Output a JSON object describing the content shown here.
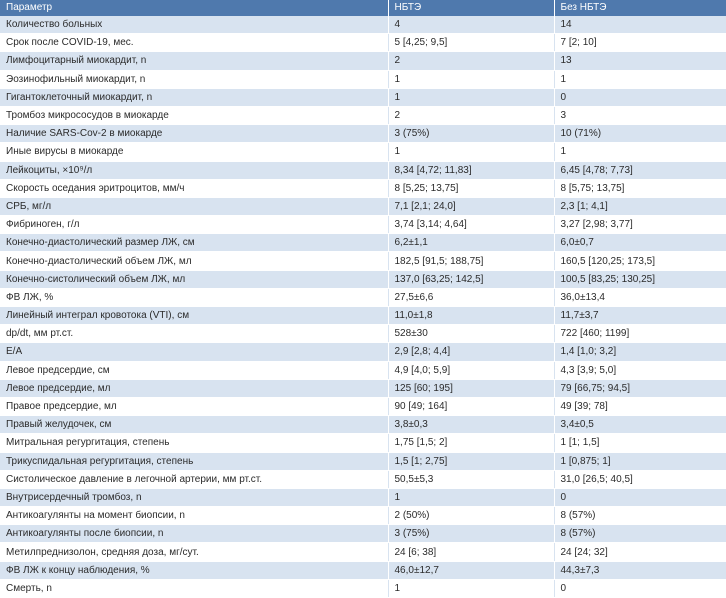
{
  "table": {
    "headers": [
      "Параметр",
      "НБТЭ",
      "Без НБТЭ"
    ],
    "rows": [
      [
        "Количество больных",
        "4",
        "14"
      ],
      [
        "Срок после COVID-19, мес.",
        "5 [4,25; 9,5]",
        "7 [2; 10]"
      ],
      [
        "Лимфоцитарный миокардит, n",
        "2",
        "13"
      ],
      [
        "Эозинофильный миокардит, n",
        "1",
        "1"
      ],
      [
        "Гигантоклеточный миокардит, n",
        "1",
        "0"
      ],
      [
        "Тромбоз микрососудов в миокарде",
        "2",
        "3"
      ],
      [
        "Наличие SARS-Cov-2 в миокарде",
        "3 (75%)",
        "10 (71%)"
      ],
      [
        "Иные вирусы в миокарде",
        "1",
        "1"
      ],
      [
        "Лейкоциты, ×10⁹/л",
        "8,34 [4,72; 11,83]",
        "6,45 [4,78; 7,73]"
      ],
      [
        "Скорость оседания эритроцитов, мм/ч",
        "8 [5,25; 13,75]",
        "8 [5,75; 13,75]"
      ],
      [
        "СРБ, мг/л",
        "7,1 [2,1; 24,0]",
        "2,3 [1; 4,1]"
      ],
      [
        "Фибриноген, г/л",
        "3,74 [3,14; 4,64]",
        "3,27 [2,98; 3,77]"
      ],
      [
        "Конечно-диастолический размер ЛЖ, см",
        "6,2±1,1",
        "6,0±0,7"
      ],
      [
        "Конечно-диастолический объем ЛЖ, мл",
        "182,5 [91,5; 188,75]",
        "160,5 [120,25; 173,5]"
      ],
      [
        "Конечно-систолический объем ЛЖ, мл",
        "137,0 [63,25; 142,5]",
        "100,5 [83,25; 130,25]"
      ],
      [
        "ФВ ЛЖ, %",
        "27,5±6,6",
        "36,0±13,4"
      ],
      [
        "Линейный интеграл кровотока (VTI), см",
        "11,0±1,8",
        "11,7±3,7"
      ],
      [
        "dp/dt, мм рт.ст.",
        "528±30",
        "722 [460; 1199]"
      ],
      [
        "E/A",
        "2,9 [2,8; 4,4]",
        "1,4 [1,0; 3,2]"
      ],
      [
        "Левое предсердие, см",
        "4,9 [4,0; 5,9]",
        "4,3 [3,9; 5,0]"
      ],
      [
        "Левое предсердие, мл",
        "125 [60; 195]",
        "79 [66,75; 94,5]"
      ],
      [
        "Правое предсердие, мл",
        "90 [49; 164]",
        "49 [39; 78]"
      ],
      [
        "Правый желудочек, см",
        "3,8±0,3",
        "3,4±0,5"
      ],
      [
        "Митральная регургитация, степень",
        "1,75 [1,5; 2]",
        "1 [1; 1,5]"
      ],
      [
        "Трикуспидальная регургитация, степень",
        "1,5 [1; 2,75]",
        "1 [0,875; 1]"
      ],
      [
        "Систолическое давление в легочной артерии, мм рт.ст.",
        "50,5±5,3",
        "31,0 [26,5; 40,5]"
      ],
      [
        "Внутрисердечный тромбоз, n",
        "1",
        "0"
      ],
      [
        "Антикоагулянты на момент биопсии, n",
        "2 (50%)",
        "8 (57%)"
      ],
      [
        "Антикоагулянты после биопсии, n",
        "3 (75%)",
        "8 (57%)"
      ],
      [
        "Метилпреднизолон, средняя доза, мг/сут.",
        "24 [6; 38]",
        "24 [24; 32]"
      ],
      [
        "ФВ ЛЖ к концу наблюдения, %",
        "46,0±12,7",
        "44,3±7,3"
      ],
      [
        "Смерть, n",
        "1",
        "0"
      ]
    ]
  },
  "colors": {
    "header_bg": "#4f79ad",
    "stripe_bg": "#d8e3f0",
    "text": "#2b2b2b"
  }
}
